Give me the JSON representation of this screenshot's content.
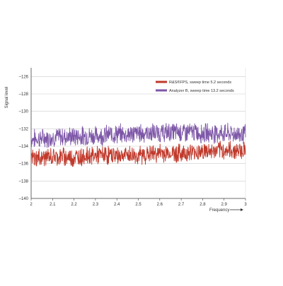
{
  "chart_data": {
    "type": "line",
    "title": "",
    "xlabel": "Frequency",
    "ylabel": "Signal level",
    "xlim": [
      2,
      3
    ],
    "ylim": [
      -140,
      -125
    ],
    "x_ticks": [
      "2",
      "2.1",
      "2.2",
      "2.3",
      "2.4",
      "2.5",
      "2.6",
      "2.7",
      "2.8",
      "2.9",
      "3"
    ],
    "y_ticks": [
      "–126",
      "–128",
      "–130",
      "–132",
      "–134",
      "–136",
      "–138",
      "–140"
    ],
    "grid": true,
    "legend_position": "top-right",
    "series": [
      {
        "name": "R&S®FPS, sweep time 5.2 seconds",
        "color": "#c0392b",
        "x": [
          2.0,
          2.05,
          2.1,
          2.15,
          2.2,
          2.25,
          2.3,
          2.35,
          2.4,
          2.45,
          2.5,
          2.55,
          2.6,
          2.65,
          2.7,
          2.75,
          2.8,
          2.85,
          2.9,
          2.95,
          3.0
        ],
        "values": [
          -135.4,
          -135.3,
          -135.2,
          -135.2,
          -135.3,
          -135.1,
          -135.1,
          -135.0,
          -135.1,
          -135.0,
          -135.1,
          -134.9,
          -134.8,
          -134.8,
          -134.8,
          -134.7,
          -134.6,
          -134.6,
          -134.5,
          -134.5,
          -134.4
        ]
      },
      {
        "name": "Analyzer B, sweep time 13.2 seconds",
        "color": "#7d56a8",
        "x": [
          2.0,
          2.05,
          2.1,
          2.15,
          2.2,
          2.25,
          2.3,
          2.35,
          2.4,
          2.45,
          2.5,
          2.55,
          2.6,
          2.65,
          2.7,
          2.75,
          2.8,
          2.85,
          2.9,
          2.95,
          3.0
        ],
        "values": [
          -133.2,
          -133.1,
          -133.0,
          -132.9,
          -132.9,
          -132.8,
          -132.8,
          -132.7,
          -132.6,
          -132.6,
          -132.5,
          -132.5,
          -132.5,
          -132.4,
          -132.4,
          -132.4,
          -132.5,
          -132.5,
          -132.5,
          -132.6,
          -132.6
        ]
      }
    ]
  }
}
